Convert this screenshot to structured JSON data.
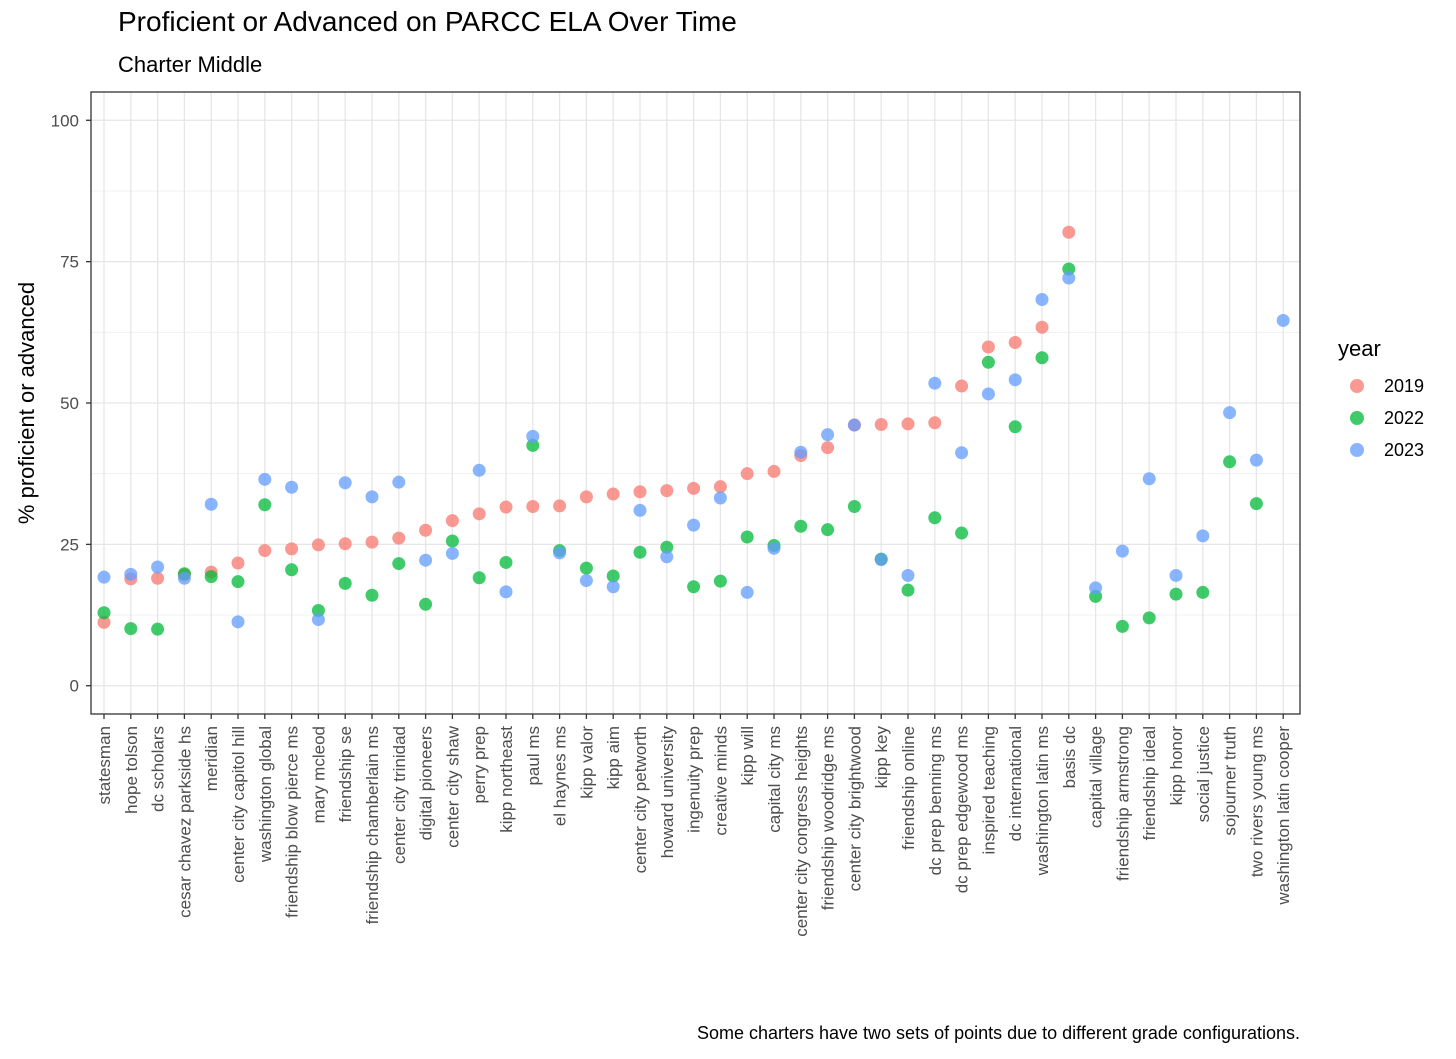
{
  "chart_data": {
    "type": "scatter",
    "title": "Proficient or Advanced on PARCC ELA Over Time",
    "subtitle": "Charter Middle",
    "ylabel": "% proficient or advanced",
    "caption": "Some charters have two sets of points due to different grade configurations.",
    "ylim": [
      -5,
      105
    ],
    "yticks": [
      0,
      25,
      50,
      75,
      100
    ],
    "grid": true,
    "legend_title": "year",
    "legend_position": "right",
    "categories": [
      "statesman",
      "hope tolson",
      "dc scholars",
      "cesar chavez parkside hs",
      "meridian",
      "center city capitol hill",
      "washington global",
      "friendship blow pierce ms",
      "mary mcleod",
      "friendship se",
      "friendship chamberlain ms",
      "center city trinidad",
      "digital pioneers",
      "center city shaw",
      "perry prep",
      "kipp northeast",
      "paul ms",
      "el haynes ms",
      "kipp valor",
      "kipp aim",
      "center city petworth",
      "howard university",
      "ingenuity prep",
      "creative minds",
      "kipp will",
      "capital city ms",
      "center city congress heights",
      "friendship woodridge ms",
      "center city brightwood",
      "kipp key",
      "friendship online",
      "dc prep benning ms",
      "dc prep edgewood ms",
      "inspired teaching",
      "dc international",
      "washington latin ms",
      "basis dc",
      "capital village",
      "friendship armstrong",
      "friendship ideal",
      "kipp honor",
      "social justice",
      "sojourner truth",
      "two rivers young ms",
      "washington latin cooper"
    ],
    "series": [
      {
        "name": "2019",
        "color": "#F8766D",
        "values": [
          11.2,
          18.9,
          19.0,
          19.6,
          20.1,
          21.7,
          23.9,
          24.2,
          24.9,
          25.1,
          25.4,
          26.1,
          27.5,
          29.2,
          30.4,
          31.6,
          31.7,
          31.8,
          33.4,
          33.9,
          34.3,
          34.5,
          34.9,
          35.2,
          37.5,
          37.9,
          40.7,
          42.1,
          46.1,
          46.2,
          46.3,
          46.5,
          53.0,
          59.9,
          60.7,
          63.4,
          80.2,
          null,
          null,
          null,
          null,
          null,
          null,
          null,
          null
        ]
      },
      {
        "name": "2022",
        "color": "#00BA38",
        "values": [
          12.9,
          10.1,
          10.0,
          19.8,
          19.3,
          18.4,
          32.0,
          20.5,
          13.3,
          18.1,
          16.0,
          21.6,
          14.4,
          25.6,
          19.1,
          21.8,
          42.5,
          23.9,
          20.8,
          19.4,
          23.6,
          24.5,
          17.5,
          18.5,
          26.3,
          24.8,
          28.2,
          27.6,
          31.7,
          22.4,
          16.9,
          29.7,
          27.0,
          57.2,
          45.8,
          58.0,
          73.7,
          15.8,
          10.5,
          12.0,
          16.2,
          16.5,
          39.6,
          32.2,
          null
        ]
      },
      {
        "name": "2023",
        "color": "#619CFF",
        "values": [
          19.2,
          19.7,
          21.0,
          19.0,
          32.1,
          11.3,
          36.5,
          35.1,
          11.7,
          35.9,
          33.4,
          36.0,
          22.2,
          23.4,
          38.1,
          16.6,
          44.1,
          23.5,
          18.6,
          17.5,
          31.0,
          22.8,
          28.4,
          33.2,
          16.5,
          24.3,
          41.3,
          44.4,
          46.1,
          22.3,
          19.5,
          53.5,
          41.2,
          51.6,
          54.1,
          68.3,
          72.1,
          17.3,
          23.8,
          36.6,
          19.5,
          26.5,
          48.3,
          39.9,
          64.6
        ]
      }
    ]
  }
}
